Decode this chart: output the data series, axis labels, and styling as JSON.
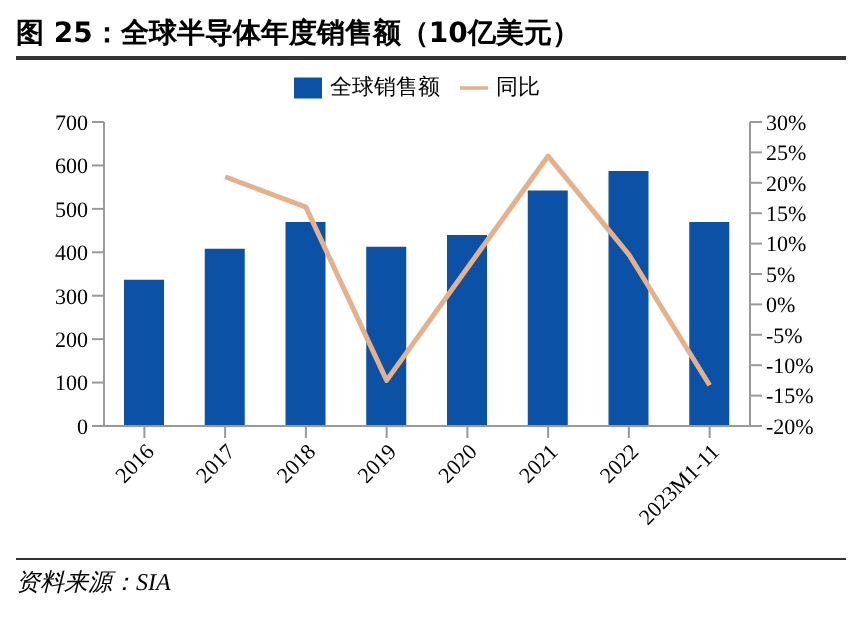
{
  "chart_data": {
    "type": "bar",
    "title": "图 25：全球半导体年度销售额（10亿美元）",
    "annotations": [
      "资料来源：SIA"
    ],
    "categories": [
      "2016",
      "2017",
      "2018",
      "2019",
      "2020",
      "2021",
      "2022",
      "2023M1-11"
    ],
    "series": [
      {
        "name": "全球销售额",
        "color": "#0b52a6",
        "values": [
          337,
          408,
          470,
          413,
          440,
          542,
          587,
          470
        ]
      },
      {
        "name": "同比",
        "type": "line",
        "axis": "y2",
        "color": "#e6b08a",
        "values": [
          null,
          21,
          16,
          -12.5,
          6,
          24.4,
          8.2,
          -13.3
        ]
      }
    ],
    "ylim": [
      0,
      700
    ],
    "yticks": [
      0,
      100,
      200,
      300,
      400,
      500,
      600,
      700
    ],
    "y2lim": [
      -20,
      30
    ],
    "y2ticks": [
      {
        "value": -20,
        "label": "-20%"
      },
      {
        "value": -15,
        "label": "-15%"
      },
      {
        "value": -10,
        "label": "-10%"
      },
      {
        "value": -5,
        "label": "-5%"
      },
      {
        "value": 0,
        "label": "0%"
      },
      {
        "value": 5,
        "label": "5%"
      },
      {
        "value": 10,
        "label": "10%"
      },
      {
        "value": 15,
        "label": "15%"
      },
      {
        "value": 20,
        "label": "20%"
      },
      {
        "value": 25,
        "label": "25%"
      },
      {
        "value": 30,
        "label": "30%"
      }
    ],
    "legend": "top",
    "grid": false,
    "marker": "none"
  }
}
